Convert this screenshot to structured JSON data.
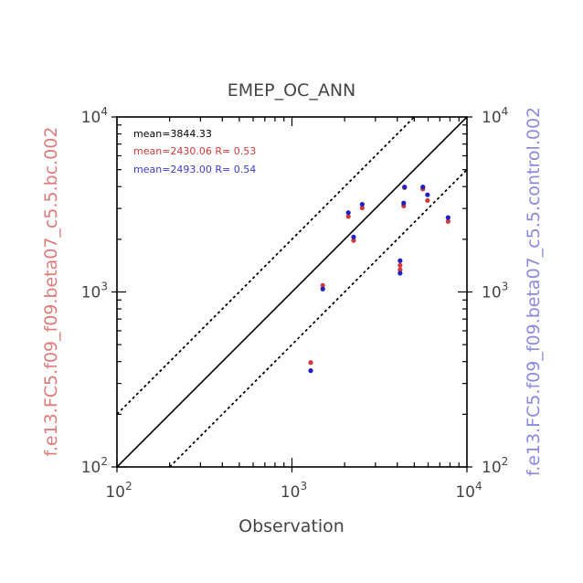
{
  "chart_data": {
    "type": "scatter",
    "title": "EMEP_OC_ANN",
    "xlabel": "Observation",
    "ylabel_left": "f.e13.FC5.f09_f09.beta07_c5.5.bc.002",
    "ylabel_right": "f.e13.FC5.f09_f09.beta07_c5.5.control.002",
    "xscale": "log",
    "yscale": "log",
    "xlim": [
      100,
      10000
    ],
    "ylim": [
      100,
      10000
    ],
    "x_ticks": [
      {
        "value": 100,
        "base": "10",
        "exp": "2"
      },
      {
        "value": 1000,
        "base": "10",
        "exp": "3"
      },
      {
        "value": 10000,
        "base": "10",
        "exp": "4"
      }
    ],
    "y_ticks": [
      {
        "value": 100,
        "base": "10",
        "exp": "2"
      },
      {
        "value": 1000,
        "base": "10",
        "exp": "3"
      },
      {
        "value": 10000,
        "base": "10",
        "exp": "4"
      }
    ],
    "stats": {
      "obs": "mean=3844.33",
      "bc": "mean=2430.06 R=  0.53",
      "control": "mean=2493.00 R=  0.54"
    },
    "reference_lines": [
      {
        "name": "1:1",
        "factor": 1,
        "style": "solid"
      },
      {
        "name": "2:1",
        "factor": 2,
        "style": "dotted"
      },
      {
        "name": "1:2",
        "factor": 0.5,
        "style": "dotted"
      }
    ],
    "series": [
      {
        "color": "#d03a3a",
        "x": [
          1280,
          1500,
          2100,
          2250,
          2520,
          4150,
          4150,
          4350,
          4400,
          5600,
          5950,
          7800
        ],
        "y": [
          395,
          1090,
          2700,
          1970,
          3020,
          1340,
          1420,
          3100,
          3950,
          3880,
          3330,
          2530
        ]
      },
      {
        "color": "#2020c0",
        "x": [
          1280,
          1500,
          2100,
          2250,
          2520,
          4150,
          4150,
          4350,
          4400,
          5600,
          5950,
          7800
        ],
        "y": [
          355,
          1040,
          2840,
          2060,
          3170,
          1280,
          1510,
          3220,
          3980,
          3980,
          3590,
          2660
        ]
      }
    ],
    "colors": {
      "obs_text": "#000000",
      "bc_text": "#d03a3a",
      "control_text": "#3a3ad0",
      "left_label": "#e07b7b",
      "right_label": "#8a8ae0",
      "axis": "#000000"
    }
  }
}
